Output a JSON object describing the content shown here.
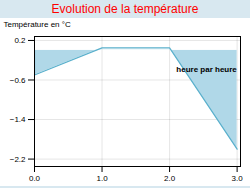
{
  "chart_data": {
    "type": "line",
    "title": "Evolution de la température",
    "ylabel": "Température en °C",
    "x": [
      0,
      0.0,
      1.0,
      2.0,
      3.0
    ],
    "values": [
      0.0,
      -0.5,
      0.05,
      0.05,
      -2.0
    ],
    "color": "#5ab0cc",
    "xlim": [
      0,
      3.05
    ],
    "ylim": [
      -2.35,
      0.28
    ],
    "xticks": [
      0,
      1,
      2,
      3
    ],
    "yticks": [
      0.2,
      -0.6,
      -1.4,
      -2.2
    ],
    "grid": true,
    "annotations": [
      {
        "text": "heure par heure",
        "x": 2.1,
        "y": -0.38
      }
    ]
  }
}
